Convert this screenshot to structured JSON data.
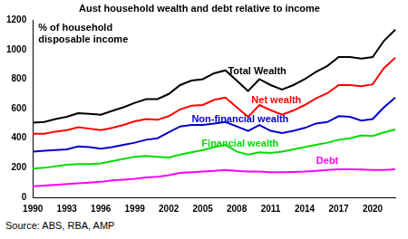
{
  "chart_data": {
    "type": "line",
    "title": "Aust household wealth and debt relative to income",
    "annotation": [
      "% of household",
      "disposable income"
    ],
    "source": "Source: ABS, RBA, AMP",
    "categories": [
      "1990",
      null,
      null,
      "1993",
      null,
      null,
      "1996",
      null,
      null,
      "1999",
      null,
      null,
      "2002",
      null,
      null,
      "2005",
      null,
      null,
      "2008",
      null,
      null,
      "2011",
      null,
      null,
      "2014",
      null,
      null,
      "2017",
      null,
      null,
      "2020",
      null,
      null
    ],
    "series": [
      {
        "name": "Total Wealth",
        "color": "#000000",
        "values": [
          505,
          510,
          530,
          545,
          570,
          565,
          560,
          585,
          610,
          640,
          665,
          665,
          700,
          760,
          790,
          800,
          840,
          860,
          790,
          720,
          800,
          760,
          730,
          760,
          800,
          850,
          890,
          950,
          950,
          940,
          950,
          1060,
          1135
        ]
      },
      {
        "name": "Net wealth",
        "color": "#ff0000",
        "values": [
          430,
          430,
          445,
          455,
          475,
          465,
          455,
          470,
          490,
          515,
          530,
          525,
          550,
          595,
          620,
          625,
          660,
          675,
          610,
          545,
          625,
          590,
          560,
          588,
          625,
          670,
          705,
          760,
          760,
          752,
          765,
          875,
          945
        ]
      },
      {
        "name": "Non-financial wealth",
        "color": "#0000cc",
        "values": [
          310,
          315,
          320,
          325,
          345,
          340,
          330,
          340,
          355,
          370,
          390,
          400,
          440,
          480,
          490,
          490,
          500,
          510,
          480,
          450,
          490,
          450,
          435,
          450,
          470,
          500,
          510,
          550,
          545,
          520,
          530,
          610,
          675
        ]
      },
      {
        "name": "Financial wealth",
        "color": "#00dd00",
        "values": [
          195,
          200,
          210,
          220,
          225,
          225,
          230,
          245,
          260,
          275,
          280,
          275,
          270,
          290,
          305,
          320,
          340,
          355,
          310,
          290,
          305,
          300,
          310,
          325,
          340,
          355,
          370,
          390,
          400,
          420,
          415,
          440,
          460
        ]
      },
      {
        "name": "Debt",
        "color": "#ff00ff",
        "values": [
          75,
          80,
          85,
          90,
          95,
          100,
          105,
          115,
          120,
          125,
          135,
          140,
          150,
          165,
          170,
          175,
          180,
          185,
          180,
          175,
          175,
          170,
          170,
          172,
          175,
          180,
          185,
          190,
          190,
          188,
          185,
          185,
          190
        ]
      }
    ],
    "ylim": [
      0,
      1200
    ],
    "yticks": [
      0,
      200,
      400,
      600,
      800,
      1000,
      1200
    ],
    "grid": false
  }
}
